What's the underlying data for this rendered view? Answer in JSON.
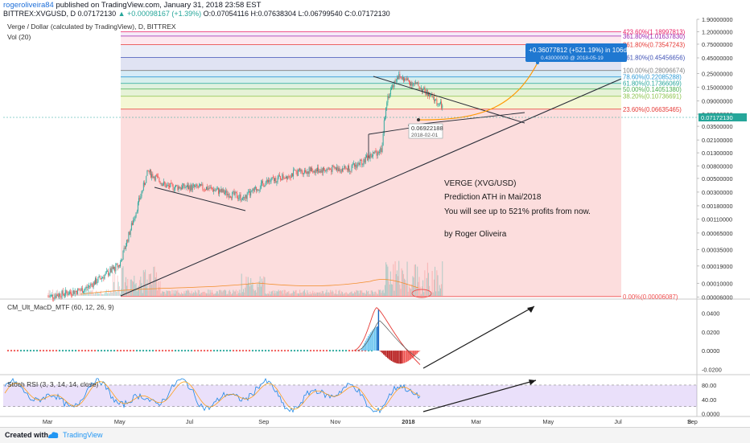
{
  "header": {
    "author": "rogeroliveira84",
    "published": "published on TradingView.com, January 31, 2018 23:58 EST",
    "symbol": "BITTREX:XVGUSD, D",
    "price": "0.07172130",
    "change": "+0.00098167 (+1.39%)",
    "ohlc": "O:0.07054116 H:0.07638304 L:0.06799540 C:0.07172130"
  },
  "main": {
    "title": "Verge / Dollar (calculated by TradingView), D, BITTREX",
    "volume_label": "Vol (20)"
  },
  "macd": {
    "label": "CM_Ult_MacD_MTF (60, 12, 26, 9)"
  },
  "rsi": {
    "label": "Stoch RSI (3, 3, 14, 14, close)"
  },
  "annotation": {
    "line1": "VERGE (XVG/USD)",
    "line2": "Prediction ATH in Mai/2018",
    "line3": "You will see up to 521% profits from now.",
    "line4": "by Roger Oliveira"
  },
  "callout": {
    "main": "+0.36077812 (+521.19%) in 106d 23h",
    "sub": "0.43000000  @ 2018-05-19"
  },
  "point_label": {
    "price": "0.06922188",
    "date": "2018-02-01"
  },
  "current_price_label": "0.07172130",
  "footer": {
    "created": "Created with",
    "brand": "TradingView"
  },
  "colors": {
    "up": "#26a69a",
    "down": "#ef5350",
    "accent": "#2196f3",
    "trendline": "#2a2e39",
    "projection": "#ff9800"
  },
  "chart_data": [
    {
      "type": "candlestick",
      "title": "Verge / Dollar (calculated by TradingView), D, BITTREX",
      "scale": "log",
      "ylim": [
        6.05e-05,
        1.9
      ],
      "y_ticks": [
        "1.90000000",
        "1.20000000",
        "0.75000000",
        "0.45000000",
        "0.25000000",
        "0.15000000",
        "0.09000000",
        "0.05500000",
        "0.03500000",
        "0.02100000",
        "0.01300000",
        "0.00800000",
        "0.00500000",
        "0.00300000",
        "0.00180000",
        "0.00110000",
        "0.00065000",
        "0.00035000",
        "0.00019000",
        "0.00010000",
        "0.00006000"
      ],
      "x_ticks": [
        "Mar",
        "May",
        "Jul",
        "Sep",
        "Nov",
        "2018",
        "Mar",
        "May",
        "Jul",
        "Sep",
        "8"
      ],
      "price_path_approx": [
        {
          "date": "2017-03-01",
          "close": 6e-05
        },
        {
          "date": "2017-04-01",
          "close": 8e-05
        },
        {
          "date": "2017-05-01",
          "close": 0.0002
        },
        {
          "date": "2017-05-25",
          "close": 0.0065
        },
        {
          "date": "2017-06-10",
          "close": 0.0037
        },
        {
          "date": "2017-07-15",
          "close": 0.0035
        },
        {
          "date": "2017-08-15",
          "close": 0.0024
        },
        {
          "date": "2017-09-01",
          "close": 0.0042
        },
        {
          "date": "2017-10-01",
          "close": 0.0065
        },
        {
          "date": "2017-11-15",
          "close": 0.0075
        },
        {
          "date": "2017-12-10",
          "close": 0.015
        },
        {
          "date": "2017-12-14",
          "close": 0.09
        },
        {
          "date": "2017-12-23",
          "close": 0.23
        },
        {
          "date": "2018-01-10",
          "close": 0.16
        },
        {
          "date": "2018-01-31",
          "close": 0.0717
        }
      ],
      "fibonacci": [
        {
          "label": "0.00%(0.00006087)",
          "value": 6.087e-05,
          "color": "#f05050"
        },
        {
          "label": "23.60%(0.06635465)",
          "value": 0.06635465,
          "color": "#e53935"
        },
        {
          "label": "38.20%(0.10736691)",
          "value": 0.10736691,
          "color": "#8bc34a"
        },
        {
          "label": "50.00%(0.14051380)",
          "value": 0.1405138,
          "color": "#4caf50"
        },
        {
          "label": "61.80%(0.17366069)",
          "value": 0.17366069,
          "color": "#26a69a"
        },
        {
          "label": "78.60%(0.22085288)",
          "value": 0.22085288,
          "color": "#2f9bd6"
        },
        {
          "label": "100.00%(0.28096674)",
          "value": 0.28096674,
          "color": "#808080"
        },
        {
          "label": "161.80%(0.45456656)",
          "value": 0.45456656,
          "color": "#3f51b5"
        },
        {
          "label": "261.80%(0.73547243)",
          "value": 0.73547243,
          "color": "#e53935"
        },
        {
          "label": "361.80%(1.01637830)",
          "value": 1.0163783,
          "color": "#9c27b0"
        },
        {
          "label": "423.60%(1.18997813)",
          "value": 1.18997813,
          "color": "#e91e63"
        }
      ],
      "projection": {
        "from_date": "2018-02-01",
        "from_price": 0.06922188,
        "to_date": "2018-05-19",
        "to_price": 0.43,
        "change": "+0.36077812 (+521.19%) in 106d 23h"
      }
    },
    {
      "type": "bar",
      "name": "CM_Ult_MacD_MTF (60, 12, 26, 9)",
      "y_ticks": [
        "0.0400",
        "0.0200",
        "0.0000",
        "-0.0200"
      ],
      "ylim": [
        -0.024,
        0.05
      ]
    },
    {
      "type": "line",
      "name": "Stoch RSI (3, 3, 14, 14, close)",
      "y_ticks": [
        "80.00",
        "40.00",
        "0.0000"
      ],
      "ylim": [
        -3,
        100
      ],
      "bands": [
        80,
        20
      ]
    }
  ]
}
